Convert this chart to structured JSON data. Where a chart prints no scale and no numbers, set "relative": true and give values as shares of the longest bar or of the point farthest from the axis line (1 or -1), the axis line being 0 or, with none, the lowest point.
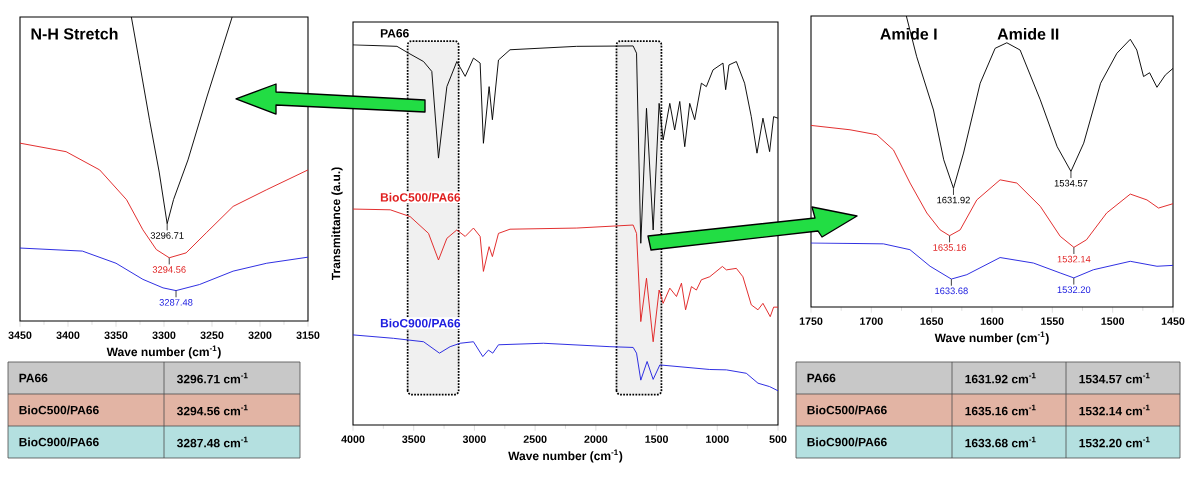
{
  "chart_data": [
    {
      "type": "line",
      "title": "N-H Stretch",
      "xlabel": "Wave number (cm$^{-1}$)",
      "relative": true,
      "xlim": [
        3450,
        3150
      ],
      "xticks": [
        3450,
        3400,
        3350,
        3300,
        3250,
        3200,
        3150
      ],
      "series": [
        {
          "color": "#000000",
          "x": [
            3334,
            3325,
            3315,
            3305,
            3296.71,
            3290,
            3275,
            3255,
            3240,
            3229
          ],
          "values": [
            1.0,
            0.84,
            0.66,
            0.49,
            0.32,
            0.4,
            0.53,
            0.74,
            0.89,
            1.0
          ]
        },
        {
          "color": "#e02020",
          "x": [
            3450,
            3402,
            3367,
            3339,
            3322,
            3308,
            3294.56,
            3277,
            3256,
            3228,
            3193,
            3150
          ],
          "values": [
            0.585,
            0.557,
            0.497,
            0.399,
            0.3,
            0.235,
            0.208,
            0.224,
            0.29,
            0.377,
            0.432,
            0.497
          ]
        },
        {
          "color": "#2020e0",
          "x": [
            3450,
            3385,
            3350,
            3322,
            3301,
            3287.48,
            3263,
            3228,
            3193,
            3150
          ],
          "values": [
            0.24,
            0.23,
            0.19,
            0.137,
            0.109,
            0.1,
            0.12,
            0.164,
            0.19,
            0.21
          ]
        }
      ],
      "annotations": [
        {
          "text": "3296.71",
          "x": 3296.71,
          "y": 0.32
        },
        {
          "text": "3294.56",
          "x": 3294.56,
          "y": 0.208
        },
        {
          "text": "3287.48",
          "x": 3287.48,
          "y": 0.1
        }
      ]
    },
    {
      "type": "line",
      "xlabel": "Wave number (cm$^{-1}$)",
      "ylabel": "Transmittance (a.u.)",
      "relative": true,
      "xlim": [
        4000,
        500
      ],
      "xticks": [
        4000,
        3500,
        3000,
        2500,
        2000,
        1500,
        1000,
        500
      ],
      "series": [
        {
          "name": "PA66",
          "color": "#000000",
          "x": [
            4000,
            3638,
            3542,
            3419,
            3351,
            3296,
            3227,
            3145,
            3076,
            3008,
            2953,
            2926,
            2879,
            2852,
            2802,
            2707,
            2158,
            1693,
            1665,
            1630,
            1583,
            1528,
            1479,
            1446,
            1391,
            1351,
            1309,
            1268,
            1227,
            1186,
            1131,
            1090,
            1035,
            953,
            931,
            904,
            843,
            775,
            720,
            673,
            624,
            569,
            536,
            500
          ],
          "values": [
            1.0,
            0.996,
            0.978,
            0.956,
            0.93,
            0.702,
            0.89,
            0.956,
            0.917,
            0.965,
            0.952,
            0.741,
            0.89,
            0.803,
            0.96,
            0.987,
            0.996,
            0.997,
            0.978,
            0.478,
            0.833,
            0.513,
            0.846,
            0.75,
            0.846,
            0.776,
            0.851,
            0.732,
            0.846,
            0.803,
            0.899,
            0.89,
            0.934,
            0.952,
            0.882,
            0.947,
            0.956,
            0.899,
            0.811,
            0.715,
            0.807,
            0.719,
            0.811,
            0.807
          ]
        },
        {
          "name": "BioC500/PA66",
          "color": "#e02020",
          "x": [
            4000,
            3693,
            3529,
            3378,
            3296,
            3227,
            3145,
            3076,
            3008,
            2953,
            2926,
            2879,
            2852,
            2802,
            2707,
            2158,
            1693,
            1665,
            1630,
            1583,
            1528,
            1479,
            1446,
            1391,
            1336,
            1295,
            1261,
            1213,
            1172,
            1131,
            1062,
            958,
            925,
            843,
            789,
            720,
            665,
            624,
            564,
            536,
            500
          ],
          "values": [
            0.568,
            0.566,
            0.548,
            0.504,
            0.434,
            0.491,
            0.513,
            0.496,
            0.518,
            0.496,
            0.404,
            0.469,
            0.443,
            0.504,
            0.515,
            0.518,
            0.526,
            0.504,
            0.272,
            0.386,
            0.219,
            0.355,
            0.32,
            0.36,
            0.338,
            0.373,
            0.303,
            0.364,
            0.355,
            0.382,
            0.39,
            0.417,
            0.408,
            0.412,
            0.39,
            0.316,
            0.303,
            0.32,
            0.285,
            0.31,
            0.31
          ]
        },
        {
          "name": "BioC900/PA66",
          "color": "#2020e0",
          "x": [
            4000,
            3666,
            3419,
            3288,
            3200,
            3118,
            3008,
            2931,
            2885,
            2849,
            2802,
            2432,
            1884,
            1693,
            1665,
            1630,
            1578,
            1528,
            1473,
            1336,
            1062,
            925,
            761,
            665,
            569,
            500
          ],
          "values": [
            0.237,
            0.228,
            0.219,
            0.189,
            0.206,
            0.215,
            0.219,
            0.18,
            0.197,
            0.189,
            0.211,
            0.215,
            0.206,
            0.204,
            0.189,
            0.118,
            0.167,
            0.12,
            0.158,
            0.154,
            0.146,
            0.145,
            0.136,
            0.11,
            0.101,
            0.09
          ]
        }
      ],
      "bands": [
        {
          "axis": "x",
          "from": 3550,
          "to": 3130
        },
        {
          "axis": "x",
          "from": 1830,
          "to": 1460
        }
      ]
    },
    {
      "type": "line",
      "xlabel": "Wave number (cm$^{-1}$)",
      "relative": true,
      "xlim": [
        1750,
        1450
      ],
      "xticks": [
        1750,
        1700,
        1650,
        1600,
        1550,
        1500,
        1450
      ],
      "series": [
        {
          "color": "#000000",
          "x": [
            1671,
            1662.4,
            1648.5,
            1640,
            1631.92,
            1623.6,
            1609.8,
            1597.4,
            1587.7,
            1576.7,
            1560,
            1546,
            1534.57,
            1524,
            1510,
            1496.5,
            1485.4,
            1480,
            1474.4,
            1469.4,
            1463.3,
            1456.4,
            1450
          ],
          "values": [
            1.0,
            0.86,
            0.677,
            0.506,
            0.408,
            0.529,
            0.769,
            0.889,
            0.908,
            0.883,
            0.712,
            0.551,
            0.466,
            0.563,
            0.769,
            0.872,
            0.92,
            0.883,
            0.792,
            0.805,
            0.755,
            0.797,
            0.82
          ]
        },
        {
          "color": "#e02020",
          "x": [
            1750,
            1717.7,
            1695.5,
            1681.7,
            1667.9,
            1654,
            1643,
            1635.16,
            1626.4,
            1612.6,
            1593.3,
            1579.4,
            1560,
            1543.5,
            1532.14,
            1521.7,
            1505,
            1485.4,
            1471.6,
            1462,
            1450
          ],
          "values": [
            0.624,
            0.609,
            0.592,
            0.54,
            0.426,
            0.323,
            0.265,
            0.245,
            0.265,
            0.368,
            0.437,
            0.426,
            0.346,
            0.243,
            0.205,
            0.231,
            0.323,
            0.388,
            0.368,
            0.34,
            0.355
          ]
        },
        {
          "color": "#2020e0",
          "x": [
            1750,
            1690,
            1668,
            1651.3,
            1633.68,
            1620.9,
            1593.3,
            1565.6,
            1543.5,
            1532.2,
            1516,
            1485.4,
            1463.3,
            1450
          ],
          "values": [
            0.22,
            0.217,
            0.197,
            0.14,
            0.096,
            0.111,
            0.17,
            0.151,
            0.117,
            0.1,
            0.128,
            0.157,
            0.14,
            0.143
          ]
        }
      ],
      "annotations": [
        "Amide I",
        "Amide II",
        {
          "text": "1631.92",
          "x": 1631.92,
          "y": 0.408
        },
        {
          "text": "1534.57",
          "x": 1534.57,
          "y": 0.466
        },
        {
          "text": "1635.16",
          "x": 1635.16,
          "y": 0.245
        },
        {
          "text": "1532.14",
          "x": 1532.14,
          "y": 0.205
        },
        {
          "text": "1633.68",
          "x": 1633.68,
          "y": 0.096
        },
        {
          "text": "1532.20",
          "x": 1532.2,
          "y": 0.1
        }
      ]
    },
    {
      "type": "other",
      "y_categories": [
        "PA66",
        "BioC500/PA66",
        "BioC900/PA66"
      ],
      "colors": [
        "#c8c8c8",
        "#e2b4a4",
        "#b4e0e0"
      ],
      "annotations": [
        "3296.71 cm$^{-1}$",
        "3294.56 cm$^{-1}$",
        "3287.48 cm$^{-1}$"
      ]
    },
    {
      "type": "other",
      "y_categories": [
        "PA66",
        "BioC500/PA66",
        "BioC900/PA66"
      ],
      "colors": [
        "#c8c8c8",
        "#e2b4a4",
        "#b4e0e0"
      ],
      "annotations": [
        "1631.92 cm$^{-1}$",
        "1534.57 cm$^{-1}$",
        "1635.16 cm$^{-1}$",
        "1532.14 cm$^{-1}$",
        "1633.68 cm$^{-1}$",
        "1532.20 cm$^{-1}$"
      ]
    }
  ]
}
